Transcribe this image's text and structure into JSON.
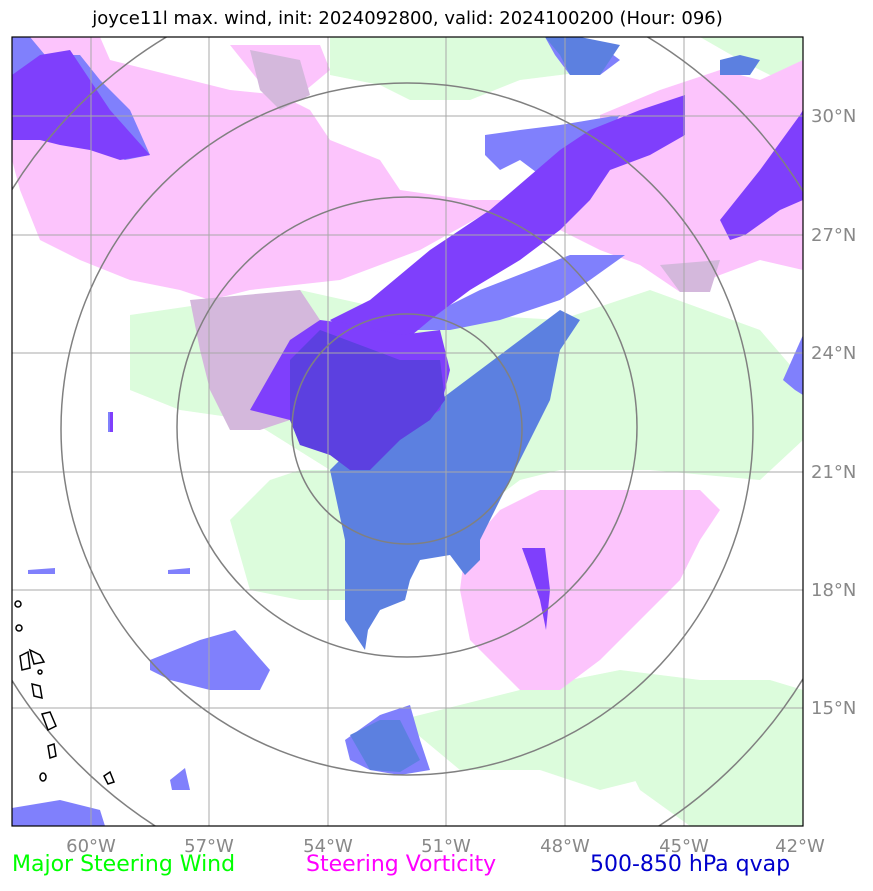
{
  "title": "joyce11l max. wind, init: 2024092800, valid: 2024100200 (Hour: 096)",
  "map": {
    "lon_ticks": [
      "60°W",
      "57°W",
      "54°W",
      "51°W",
      "48°W",
      "45°W",
      "42°W"
    ],
    "lat_ticks": [
      "30°N",
      "27°N",
      "24°N",
      "21°N",
      "18°N",
      "15°N"
    ]
  },
  "legend": {
    "steering_wind": {
      "label": "Major Steering Wind",
      "color": "#00ff00"
    },
    "steering_vorticity": {
      "label": "Steering Vorticity",
      "color": "#ff00ff"
    },
    "qvap": {
      "label": "500-850 hPa qvap",
      "color": "#0000cc"
    }
  },
  "colors": {
    "wind_fill": "#dcfcdc",
    "vorticity_fill": "#fcc4fc",
    "qvap_light": "#8080fc",
    "qvap_mid": "#5c80e0",
    "qvap_dark": "#7f3ffc",
    "overlap": "#d4b8dc",
    "grid": "#a8a8a8",
    "range_rings": "#808080"
  }
}
